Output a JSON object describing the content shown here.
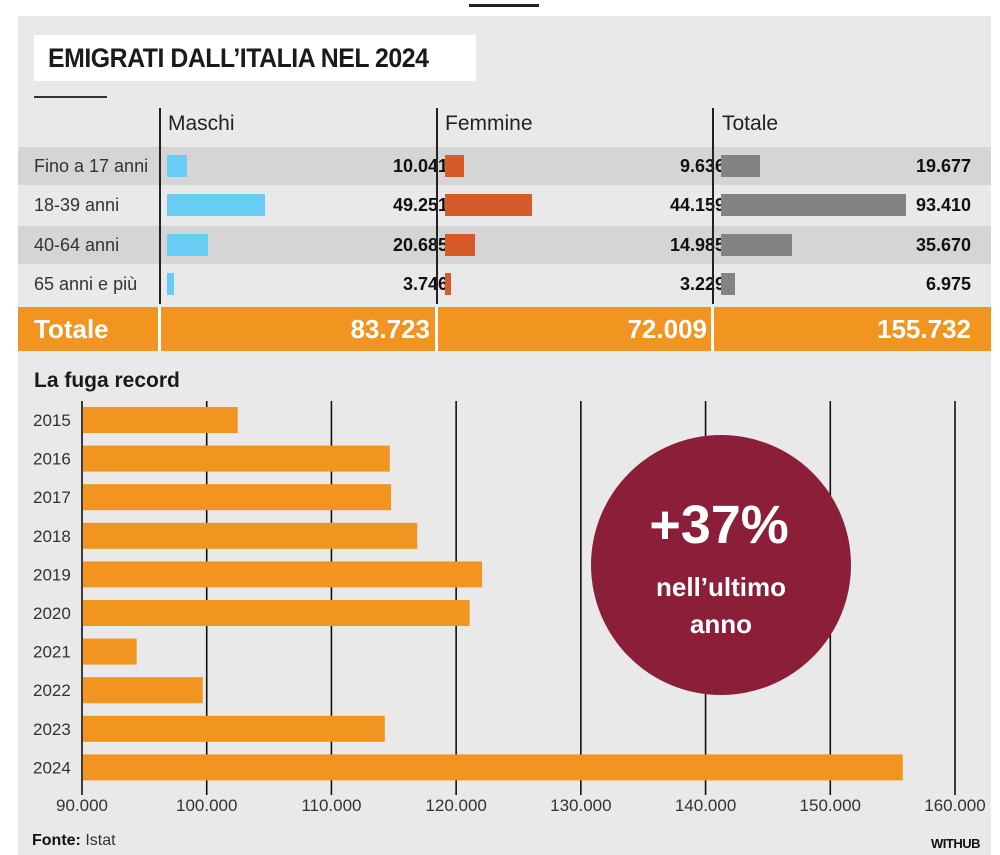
{
  "title": "EMIGRATI DALL’ITALIA NEL 2024",
  "table": {
    "columns": [
      "Maschi",
      "Femmine",
      "Totale"
    ],
    "rows": [
      {
        "label": "Fino a 17 anni",
        "maschi": "10.041",
        "femmine": "9.636",
        "totale": "19.677",
        "m": 10041,
        "f": 9636,
        "t": 19677
      },
      {
        "label": "18-39 anni",
        "maschi": "49.251",
        "femmine": "44.159",
        "totale": "93.410",
        "m": 49251,
        "f": 44159,
        "t": 93410
      },
      {
        "label": "40-64 anni",
        "maschi": "20.685",
        "femmine": "14.985",
        "totale": "35.670",
        "m": 20685,
        "f": 14985,
        "t": 35670
      },
      {
        "label": "65 anni e più",
        "maschi": "3.746",
        "femmine": "3.229",
        "totale": "6.975",
        "m": 3746,
        "f": 3229,
        "t": 6975
      }
    ],
    "total": {
      "label": "Totale",
      "maschi": "83.723",
      "femmine": "72.009",
      "totale": "155.732"
    }
  },
  "colors": {
    "maschi": "#67cdf4",
    "femmine": "#d65a2a",
    "totale": "#838383",
    "orange": "#f29420",
    "badge": "#8b1e38"
  },
  "chart_data": {
    "type": "bar",
    "orientation": "horizontal",
    "title": "La fuga record",
    "categories": [
      "2015",
      "2016",
      "2017",
      "2018",
      "2019",
      "2020",
      "2021",
      "2022",
      "2023",
      "2024"
    ],
    "values": [
      102400,
      114600,
      114700,
      116800,
      122000,
      121000,
      94300,
      99600,
      114200,
      155732
    ],
    "xlim": [
      90000,
      160000
    ],
    "xticks": [
      90000,
      100000,
      110000,
      120000,
      130000,
      140000,
      150000,
      160000
    ],
    "xtick_labels": [
      "90.000",
      "100.000",
      "110.000",
      "120.000",
      "130.000",
      "140.000",
      "150.000",
      "160.000"
    ],
    "grid": true,
    "annotation": {
      "big": "+37%",
      "line1": "nell’ultimo",
      "line2": "anno"
    }
  },
  "footer": {
    "source_label": "Fonte:",
    "source": "Istat",
    "brand": "WITHUB"
  }
}
